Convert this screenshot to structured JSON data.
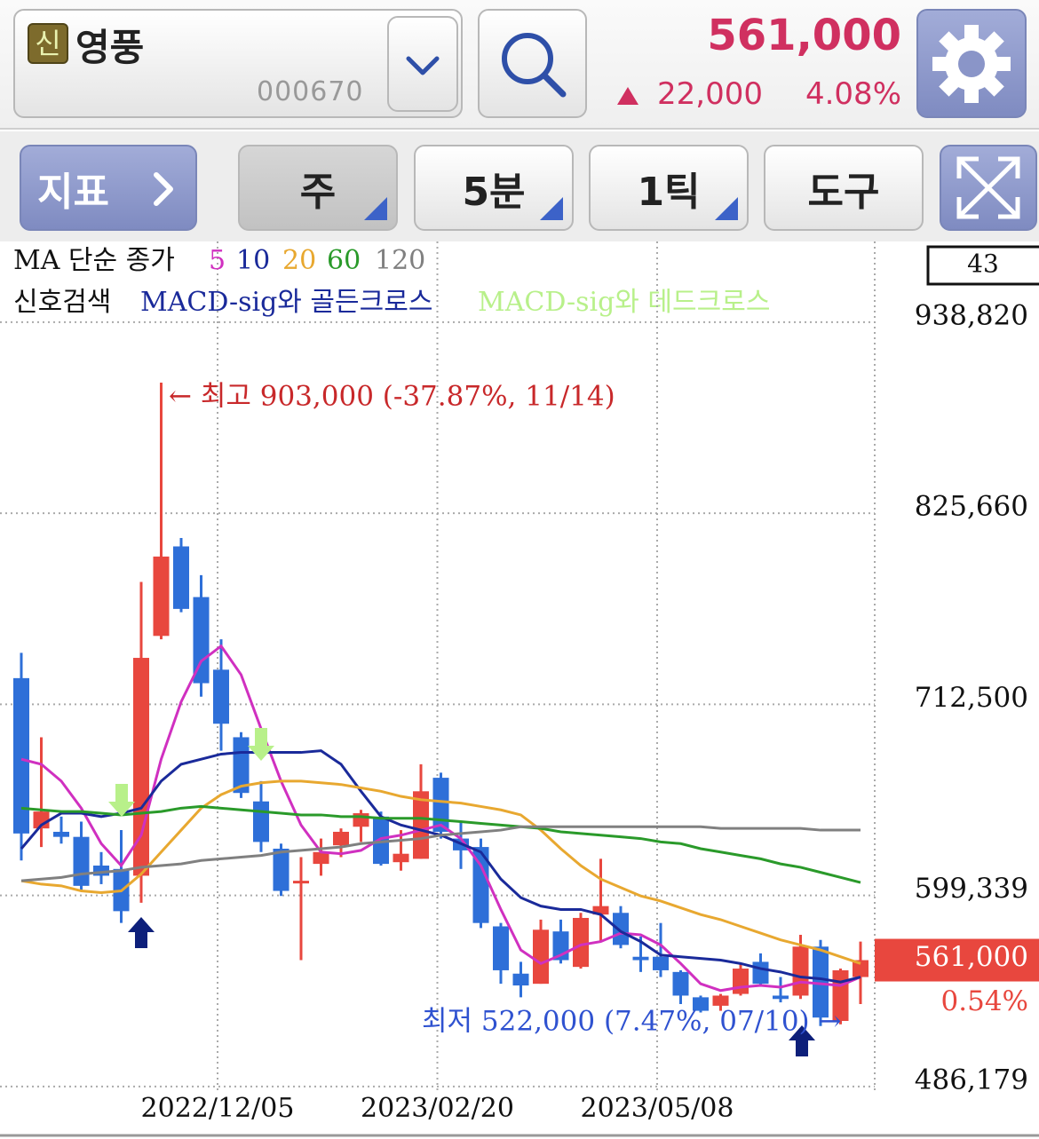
{
  "header": {
    "badge": "신",
    "name": "영풍",
    "code": "000670",
    "price": "561,000",
    "change": "22,000",
    "change_rate": "4.08%"
  },
  "toolbar": {
    "indicator": "지표",
    "period": "주",
    "interval": "5분",
    "tick": "1틱",
    "tools": "도구"
  },
  "chart_data": {
    "type": "candlestick",
    "legend_title": "MA 단순 종가",
    "signal_title": "신호검색",
    "signal_golden": "MACD-sig와 골든크로스",
    "signal_dead": "MACD-sig와 데드크로스",
    "visible_count": "43",
    "high_label": "← 최고 903,000 (-37.87%, 11/14)",
    "low_label": "최저 522,000 (7.47%, 07/10) →",
    "last_price": {
      "value": 561000,
      "label": "561,000"
    },
    "last_change": "0.54%",
    "up_color": "#e8473e",
    "down_color": "#2e6fd8",
    "grid": true,
    "categories": [
      null,
      null,
      null,
      null,
      null,
      null,
      null,
      null,
      null,
      null,
      "2022/12/05",
      null,
      null,
      null,
      null,
      null,
      null,
      null,
      null,
      null,
      null,
      "2023/02/20",
      null,
      null,
      null,
      null,
      null,
      null,
      null,
      null,
      null,
      null,
      "2023/05/08",
      null,
      null,
      null,
      null,
      null,
      null,
      null,
      null,
      null,
      null
    ],
    "open": [
      728000,
      639000,
      637000,
      634000,
      617000,
      615000,
      611000,
      753000,
      806000,
      776000,
      733000,
      693000,
      655000,
      627000,
      607000,
      618000,
      629000,
      640000,
      646000,
      619000,
      621000,
      669000,
      633000,
      628000,
      581000,
      553000,
      547000,
      578000,
      557000,
      588000,
      589000,
      563000,
      563000,
      554000,
      539000,
      534000,
      541000,
      560000,
      540000,
      540000,
      569000,
      525000,
      551000
    ],
    "high": [
      743000,
      693000,
      646000,
      643000,
      625000,
      638000,
      785000,
      903000,
      811000,
      789000,
      751000,
      696000,
      667000,
      630000,
      622000,
      633000,
      639000,
      650000,
      649000,
      638000,
      677000,
      672000,
      643000,
      633000,
      583000,
      560000,
      585000,
      585000,
      589000,
      621000,
      593000,
      575000,
      583000,
      555000,
      540000,
      541000,
      559000,
      565000,
      551000,
      576000,
      573000,
      556000,
      572000
    ],
    "low": [
      620000,
      628000,
      630000,
      602000,
      606000,
      583000,
      595000,
      751000,
      767000,
      717000,
      685000,
      657000,
      625000,
      599000,
      561000,
      611000,
      622000,
      631000,
      617000,
      614000,
      621000,
      633000,
      615000,
      580000,
      547000,
      539000,
      547000,
      559000,
      556000,
      572000,
      568000,
      554000,
      551000,
      535000,
      530000,
      531000,
      540000,
      546000,
      536000,
      538000,
      522000,
      523000,
      535000
    ],
    "close": [
      636000,
      649000,
      634000,
      605000,
      611000,
      590000,
      740000,
      800000,
      769000,
      725000,
      701000,
      660000,
      631000,
      602000,
      608000,
      625000,
      637000,
      648000,
      618000,
      624000,
      661000,
      637000,
      626000,
      583000,
      555000,
      546000,
      579000,
      561000,
      586000,
      593000,
      570000,
      561000,
      555000,
      540000,
      531000,
      540000,
      556000,
      547000,
      538000,
      569000,
      527000,
      555000,
      561000
    ],
    "series": [
      {
        "name": "5",
        "color": "#d030c0",
        "values": [
          680000,
          677000,
          667000,
          651000,
          630000,
          617000,
          635000,
          680000,
          714000,
          738000,
          747000,
          730000,
          698000,
          667000,
          641000,
          625000,
          624000,
          626000,
          633000,
          635000,
          638000,
          641000,
          633000,
          617000,
          591000,
          567000,
          559000,
          564000,
          570000,
          572000,
          577000,
          576000,
          570000,
          559000,
          547000,
          543000,
          545000,
          546000,
          545000,
          548000,
          547000,
          546000,
          551000
        ]
      },
      {
        "name": "10",
        "color": "#1a2a9a",
        "values": [
          627000,
          641000,
          648000,
          648000,
          646000,
          648000,
          651000,
          667000,
          677000,
          680000,
          683000,
          684000,
          684000,
          684000,
          684000,
          685000,
          677000,
          661000,
          646000,
          641000,
          638000,
          635000,
          630000,
          625000,
          609000,
          598000,
          593000,
          591000,
          591000,
          588000,
          578000,
          572000,
          564000,
          563000,
          562000,
          561000,
          559000,
          556000,
          554000,
          551000,
          550000,
          548000,
          551000
        ]
      },
      {
        "name": "20",
        "color": "#e8a830",
        "values": [
          608000,
          606000,
          605000,
          602000,
          601000,
          602000,
          612000,
          625000,
          638000,
          651000,
          659000,
          664000,
          666000,
          667000,
          667000,
          666000,
          665000,
          663000,
          661000,
          658000,
          656000,
          655000,
          654000,
          652000,
          650000,
          647000,
          638000,
          627000,
          617000,
          609000,
          604000,
          599000,
          596000,
          592000,
          588000,
          585000,
          581000,
          577000,
          573000,
          570000,
          567000,
          563000,
          559000
        ]
      },
      {
        "name": "60",
        "color": "#2a9a2a",
        "values": [
          651000,
          650000,
          649000,
          649000,
          648000,
          647000,
          648000,
          649000,
          651000,
          652000,
          651000,
          650000,
          649000,
          648000,
          647000,
          647000,
          646000,
          646000,
          645000,
          645000,
          645000,
          644000,
          643000,
          642000,
          641000,
          640000,
          639000,
          637000,
          636000,
          635000,
          634000,
          633000,
          631000,
          630000,
          627000,
          625000,
          623000,
          621000,
          618000,
          616000,
          613000,
          610000,
          607000
        ]
      },
      {
        "name": "120",
        "color": "#808080",
        "values": [
          608000,
          609000,
          610000,
          612000,
          613000,
          614000,
          616000,
          617000,
          618000,
          620000,
          621000,
          622000,
          623000,
          625000,
          626000,
          627000,
          628000,
          630000,
          631000,
          632000,
          633000,
          635000,
          636000,
          637000,
          638000,
          640000,
          640000,
          640000,
          640000,
          640000,
          640000,
          640000,
          640000,
          640000,
          640000,
          639000,
          639000,
          639000,
          639000,
          639000,
          638000,
          638000,
          638000
        ]
      }
    ],
    "ylim": [
      484000,
      985000
    ],
    "yticks": [
      {
        "value": 938820,
        "label": "938,820"
      },
      {
        "value": 825660,
        "label": "825,660"
      },
      {
        "value": 712500,
        "label": "712,500"
      },
      {
        "value": 599339,
        "label": "599,339"
      },
      {
        "value": 486179,
        "label": "486,179"
      }
    ]
  }
}
